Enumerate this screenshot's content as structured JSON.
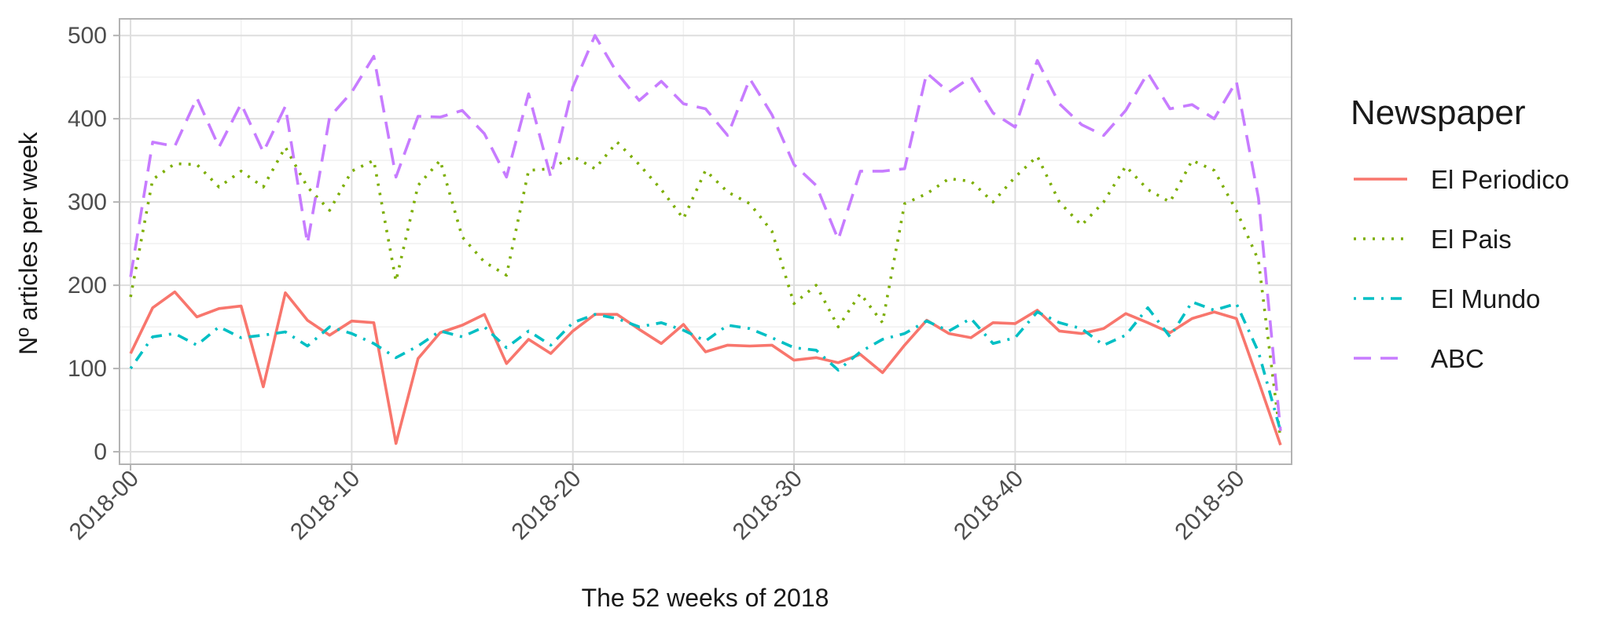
{
  "chart_data": {
    "type": "line",
    "xlabel": "The 52 weeks of 2018",
    "ylabel": "Nº articles per week",
    "xlim": [
      -0.5,
      52.5
    ],
    "ylim": [
      -15,
      520
    ],
    "x_ticks": [
      0,
      10,
      20,
      30,
      40,
      50
    ],
    "x_tick_labels": [
      "2018-00",
      "2018-10",
      "2018-20",
      "2018-30",
      "2018-40",
      "2018-50"
    ],
    "y_ticks": [
      0,
      100,
      200,
      300,
      400,
      500
    ],
    "y_tick_labels": [
      "0",
      "100",
      "200",
      "300",
      "400",
      "500"
    ],
    "grid": true,
    "legend_position": "right",
    "legend_title": "Newspaper",
    "x": [
      0,
      1,
      2,
      3,
      4,
      5,
      6,
      7,
      8,
      9,
      10,
      11,
      12,
      13,
      14,
      15,
      16,
      17,
      18,
      19,
      20,
      21,
      22,
      23,
      24,
      25,
      26,
      27,
      28,
      29,
      30,
      31,
      32,
      33,
      34,
      35,
      36,
      37,
      38,
      39,
      40,
      41,
      42,
      43,
      44,
      45,
      46,
      47,
      48,
      49,
      50,
      51,
      52
    ],
    "series": [
      {
        "name": "El Periodico",
        "color": "#F8766D",
        "line_style": "solid",
        "values": [
          118,
          173,
          192,
          162,
          172,
          175,
          78,
          191,
          158,
          140,
          157,
          155,
          10,
          112,
          143,
          152,
          165,
          106,
          135,
          118,
          145,
          165,
          165,
          147,
          130,
          153,
          120,
          128,
          127,
          128,
          110,
          113,
          107,
          117,
          95,
          128,
          158,
          142,
          137,
          155,
          154,
          170,
          145,
          142,
          148,
          166,
          155,
          143,
          160,
          168,
          160,
          85,
          8
        ]
      },
      {
        "name": "El Pais",
        "color": "#7CAE00",
        "line_style": "dotted",
        "values": [
          186,
          327,
          346,
          345,
          318,
          337,
          318,
          366,
          318,
          290,
          337,
          350,
          205,
          320,
          350,
          258,
          228,
          212,
          338,
          340,
          355,
          340,
          372,
          345,
          315,
          280,
          338,
          312,
          298,
          265,
          178,
          200,
          150,
          190,
          155,
          298,
          310,
          328,
          325,
          300,
          330,
          355,
          300,
          272,
          300,
          343,
          315,
          300,
          350,
          338,
          290,
          230,
          15
        ]
      },
      {
        "name": "El Mundo",
        "color": "#00BFC4",
        "line_style": "dotdash",
        "values": [
          100,
          138,
          142,
          128,
          150,
          137,
          140,
          144,
          127,
          150,
          142,
          130,
          113,
          127,
          145,
          138,
          150,
          125,
          145,
          128,
          155,
          165,
          160,
          150,
          155,
          146,
          133,
          152,
          148,
          137,
          125,
          122,
          98,
          120,
          135,
          142,
          157,
          145,
          160,
          130,
          137,
          168,
          155,
          148,
          128,
          140,
          173,
          138,
          180,
          170,
          178,
          120,
          25
        ]
      },
      {
        "name": "ABC",
        "color": "#C77CFF",
        "line_style": "dashed",
        "values": [
          210,
          372,
          367,
          425,
          366,
          418,
          360,
          415,
          250,
          402,
          432,
          475,
          330,
          403,
          402,
          410,
          382,
          330,
          430,
          330,
          438,
          500,
          455,
          422,
          445,
          418,
          412,
          380,
          448,
          405,
          345,
          320,
          255,
          337,
          337,
          340,
          455,
          432,
          450,
          407,
          390,
          470,
          418,
          393,
          380,
          410,
          455,
          412,
          417,
          400,
          445,
          305,
          25
        ]
      }
    ]
  }
}
